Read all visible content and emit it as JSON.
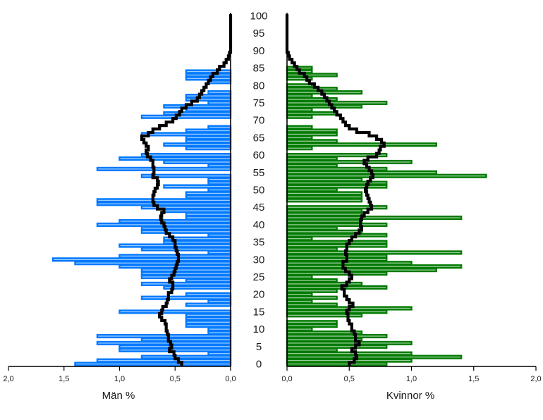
{
  "chart_data": [
    {
      "type": "bar",
      "orientation": "horizontal",
      "side": "left",
      "xlabel": "Män %",
      "x_direction": "reversed",
      "xlim": [
        0,
        2.0
      ],
      "x_ticks": [
        "2,0",
        "1,5",
        "1,0",
        "0,5",
        "0,0"
      ],
      "y_categories": "age 0–100",
      "series": [
        {
          "name": "",
          "style": "outline-bars",
          "color": "#0078ff",
          "values": [
            1.4,
            1.2,
            0.8,
            0.2,
            1.0,
            1.0,
            1.2,
            0.8,
            1.2,
            0.2,
            0.2,
            0.4,
            0.4,
            0.4,
            0.4,
            1.0,
            0.0,
            0.4,
            0.2,
            0.8,
            0.4,
            0.0,
            0.6,
            0.8,
            0.4,
            0.8,
            0.8,
            0.8,
            1.0,
            1.4,
            1.6,
            1.0,
            0.2,
            0.8,
            1.0,
            0.6,
            0.6,
            0.2,
            0.8,
            0.8,
            1.2,
            1.0,
            0.4,
            0.4,
            0.6,
            0.8,
            1.2,
            1.2,
            0.4,
            0.4,
            0.2,
            0.6,
            0.2,
            0.2,
            0.8,
            0.0,
            1.2,
            0.2,
            0.6,
            1.0,
            0.8,
            0.0,
            0.4,
            0.6,
            0.4,
            0.4,
            0.8,
            0.4,
            0.2,
            0.0,
            0.0,
            0.8,
            0.6,
            0.4,
            0.6,
            0.2,
            0.4,
            0.4,
            0.2,
            0.0,
            0.0,
            0.2,
            0.4,
            0.4,
            0.4,
            0.0,
            0.0,
            0.0,
            0.0,
            0.0,
            0.0,
            0.0,
            0.0,
            0.0,
            0.0,
            0.0,
            0.0,
            0.0,
            0.0,
            0.0,
            0.0
          ]
        },
        {
          "name": "",
          "style": "stepped-line",
          "color": "#000000",
          "values": [
            0.44,
            0.47,
            0.5,
            0.51,
            0.55,
            0.53,
            0.54,
            0.56,
            0.56,
            0.57,
            0.58,
            0.58,
            0.59,
            0.62,
            0.64,
            0.62,
            0.61,
            0.58,
            0.57,
            0.56,
            0.56,
            0.53,
            0.52,
            0.52,
            0.55,
            0.53,
            0.51,
            0.5,
            0.49,
            0.48,
            0.47,
            0.47,
            0.48,
            0.49,
            0.5,
            0.5,
            0.52,
            0.55,
            0.58,
            0.59,
            0.6,
            0.62,
            0.63,
            0.62,
            0.6,
            0.66,
            0.69,
            0.7,
            0.7,
            0.69,
            0.68,
            0.66,
            0.65,
            0.66,
            0.7,
            0.69,
            0.69,
            0.7,
            0.7,
            0.72,
            0.75,
            0.76,
            0.74,
            0.76,
            0.78,
            0.8,
            0.74,
            0.7,
            0.64,
            0.58,
            0.52,
            0.49,
            0.46,
            0.44,
            0.4,
            0.35,
            0.3,
            0.28,
            0.26,
            0.24,
            0.22,
            0.2,
            0.18,
            0.16,
            0.12,
            0.1,
            0.06,
            0.04,
            0.02,
            0.01,
            0.0,
            0.0,
            0.0,
            0.0,
            0.0,
            0.0,
            0.0,
            0.0,
            0.0,
            0.0,
            0.0
          ]
        }
      ]
    },
    {
      "type": "bar",
      "orientation": "horizontal",
      "side": "right",
      "xlabel": "Kvinnor %",
      "xlim": [
        0,
        2.0
      ],
      "x_ticks": [
        "0,0",
        "0,5",
        "1,0",
        "1,5",
        "2,0"
      ],
      "y_categories": "age 0–100",
      "series": [
        {
          "name": "",
          "style": "outline-bars",
          "color": "#007a00",
          "values": [
            0.8,
            1.0,
            1.4,
            1.0,
            0.4,
            0.8,
            1.0,
            0.6,
            0.8,
            0.6,
            0.2,
            0.4,
            0.4,
            0.0,
            0.6,
            0.8,
            1.0,
            0.4,
            0.2,
            0.4,
            0.2,
            0.4,
            0.8,
            0.6,
            0.4,
            0.2,
            0.8,
            1.2,
            1.4,
            1.0,
            0.8,
            0.8,
            1.4,
            0.4,
            0.8,
            0.8,
            0.2,
            0.8,
            0.6,
            0.4,
            0.8,
            0.6,
            1.4,
            0.6,
            0.6,
            0.8,
            0.0,
            0.6,
            0.6,
            0.6,
            0.4,
            0.8,
            0.8,
            0.6,
            1.6,
            1.2,
            0.8,
            0.4,
            1.0,
            0.4,
            0.8,
            0.0,
            0.2,
            1.2,
            0.4,
            0.2,
            0.4,
            0.4,
            0.2,
            0.0,
            0.0,
            0.2,
            0.4,
            0.2,
            0.6,
            0.8,
            0.4,
            0.2,
            0.6,
            0.4,
            0.2,
            0.0,
            0.2,
            0.4,
            0.2,
            0.2,
            0.0,
            0.0,
            0.0,
            0.0,
            0.0,
            0.0,
            0.0,
            0.0,
            0.0,
            0.0,
            0.0,
            0.0,
            0.0,
            0.0,
            0.0
          ]
        },
        {
          "name": "",
          "style": "stepped-line",
          "color": "#000000",
          "values": [
            0.5,
            0.54,
            0.56,
            0.55,
            0.52,
            0.55,
            0.58,
            0.55,
            0.55,
            0.54,
            0.52,
            0.52,
            0.5,
            0.49,
            0.49,
            0.48,
            0.5,
            0.53,
            0.5,
            0.48,
            0.46,
            0.46,
            0.44,
            0.48,
            0.5,
            0.52,
            0.5,
            0.47,
            0.45,
            0.45,
            0.48,
            0.48,
            0.47,
            0.48,
            0.48,
            0.5,
            0.52,
            0.55,
            0.58,
            0.6,
            0.59,
            0.59,
            0.6,
            0.62,
            0.65,
            0.68,
            0.67,
            0.66,
            0.65,
            0.64,
            0.63,
            0.64,
            0.65,
            0.67,
            0.69,
            0.68,
            0.66,
            0.64,
            0.62,
            0.65,
            0.72,
            0.74,
            0.75,
            0.78,
            0.76,
            0.72,
            0.66,
            0.56,
            0.5,
            0.47,
            0.45,
            0.43,
            0.4,
            0.38,
            0.36,
            0.34,
            0.32,
            0.3,
            0.28,
            0.25,
            0.22,
            0.18,
            0.16,
            0.14,
            0.1,
            0.08,
            0.06,
            0.04,
            0.02,
            0.01,
            0.0,
            0.0,
            0.0,
            0.0,
            0.0,
            0.0,
            0.0,
            0.0,
            0.0,
            0.0,
            0.0
          ]
        }
      ]
    }
  ],
  "age_axis": {
    "labels": [
      "0",
      "5",
      "10",
      "15",
      "20",
      "25",
      "30",
      "35",
      "40",
      "45",
      "50",
      "55",
      "60",
      "65",
      "70",
      "75",
      "80",
      "85",
      "90",
      "95",
      "100"
    ]
  },
  "colors": {
    "men_fill": "#99ccff",
    "men_outline": "#0078ff",
    "women_fill": "#99cc99",
    "women_outline": "#007a00",
    "line": "#000000"
  }
}
